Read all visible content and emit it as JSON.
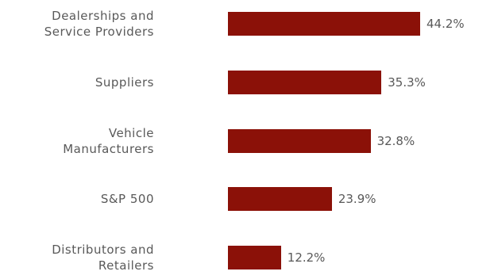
{
  "chart_data": {
    "type": "bar",
    "orientation": "horizontal",
    "categories": [
      "Dealerships and\nService Providers",
      "Suppliers",
      "Vehicle\nManufacturers",
      "S&P 500",
      "Distributors and\nRetailers"
    ],
    "values": [
      44.2,
      35.3,
      32.8,
      23.9,
      12.2
    ],
    "value_labels": [
      "44.2%",
      "35.3%",
      "32.8%",
      "23.9%",
      "12.2%"
    ],
    "color": "#8b1108"
  }
}
